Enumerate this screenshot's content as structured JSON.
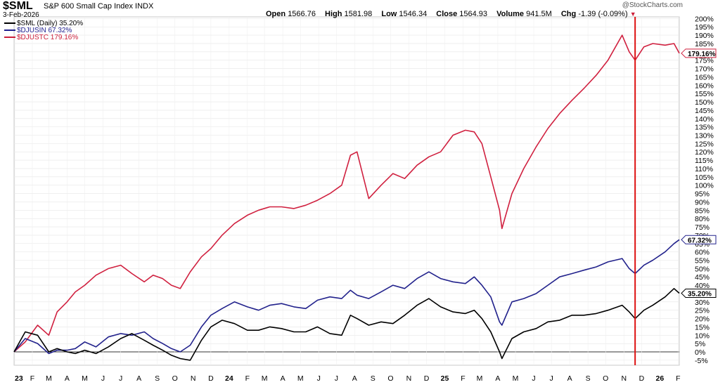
{
  "header": {
    "symbol": "$SML",
    "index_name": "S&P 600 Small Cap Index  INDX",
    "date": "3-Feb-2026",
    "brand": "@StockCharts.com",
    "open_label": "Open",
    "open_value": "1566.76",
    "high_label": "High",
    "high_value": "1581.98",
    "low_label": "Low",
    "low_value": "1546.34",
    "close_label": "Close",
    "close_value": "1564.93",
    "volume_label": "Volume",
    "volume_value": "941.5M",
    "chg_label": "Chg",
    "chg_value": "-1.39 (-0.09%)"
  },
  "legend": [
    {
      "label": "$SML (Daily) 35.20%",
      "color": "#000000"
    },
    {
      "label": "$DJUSIN 67.32%",
      "color": "#1f1f8f"
    },
    {
      "label": "$DJUSTC 179.16%",
      "color": "#cc1f3a"
    }
  ],
  "colors": {
    "sml": "#000000",
    "djusin": "#22228c",
    "djustc": "#d0203f",
    "marker": "#dd1111",
    "zero_line": "#333333"
  },
  "chart_data": {
    "type": "line",
    "ylim": [
      -8,
      201
    ],
    "y_ticks": [
      "-5%",
      "0%",
      "5%",
      "10%",
      "15%",
      "20%",
      "25%",
      "30%",
      "35%",
      "40%",
      "45%",
      "50%",
      "55%",
      "60%",
      "65%",
      "70%",
      "75%",
      "80%",
      "85%",
      "90%",
      "95%",
      "100%",
      "105%",
      "110%",
      "115%",
      "120%",
      "125%",
      "130%",
      "135%",
      "140%",
      "145%",
      "150%",
      "155%",
      "160%",
      "165%",
      "170%",
      "175%",
      "180%",
      "185%",
      "190%",
      "195%",
      "200%"
    ],
    "x_ticks": [
      "23",
      "F",
      "M",
      "A",
      "M",
      "J",
      "J",
      "A",
      "S",
      "O",
      "N",
      "D",
      "24",
      "F",
      "M",
      "A",
      "M",
      "J",
      "J",
      "A",
      "S",
      "O",
      "N",
      "D",
      "25",
      "F",
      "M",
      "A",
      "M",
      "J",
      "J",
      "A",
      "S",
      "O",
      "N",
      "D",
      "26",
      "F"
    ],
    "x_range": [
      "2023-01-01",
      "2026-02-03"
    ],
    "vertical_marker_date": "2025-11-20",
    "series": [
      {
        "name": "$DJUSTC",
        "last_label": "179.16%",
        "x": [
          "2023-01-01",
          "2023-01-20",
          "2023-02-10",
          "2023-03-01",
          "2023-03-15",
          "2023-04-01",
          "2023-04-15",
          "2023-05-01",
          "2023-05-20",
          "2023-06-10",
          "2023-07-01",
          "2023-07-20",
          "2023-08-10",
          "2023-08-25",
          "2023-09-10",
          "2023-09-25",
          "2023-10-10",
          "2023-10-27",
          "2023-11-15",
          "2023-12-01",
          "2023-12-20",
          "2024-01-10",
          "2024-02-01",
          "2024-02-20",
          "2024-03-10",
          "2024-03-30",
          "2024-04-20",
          "2024-05-10",
          "2024-05-30",
          "2024-06-20",
          "2024-07-10",
          "2024-07-25",
          "2024-08-05",
          "2024-08-25",
          "2024-09-15",
          "2024-10-05",
          "2024-10-25",
          "2024-11-15",
          "2024-12-05",
          "2024-12-25",
          "2025-01-15",
          "2025-02-05",
          "2025-02-20",
          "2025-03-05",
          "2025-03-20",
          "2025-04-04",
          "2025-04-08",
          "2025-04-25",
          "2025-05-15",
          "2025-06-05",
          "2025-06-25",
          "2025-07-15",
          "2025-08-05",
          "2025-08-25",
          "2025-09-15",
          "2025-10-05",
          "2025-10-29",
          "2025-11-10",
          "2025-11-20",
          "2025-12-05",
          "2025-12-20",
          "2026-01-10",
          "2026-01-25",
          "2026-02-03"
        ],
        "y": [
          0,
          6,
          16,
          10,
          24,
          30,
          36,
          40,
          46,
          50,
          52,
          47,
          42,
          46,
          44,
          40,
          38,
          48,
          57,
          62,
          70,
          77,
          82,
          85,
          87,
          87,
          86,
          88,
          91,
          95,
          100,
          118,
          120,
          92,
          100,
          107,
          104,
          112,
          117,
          120,
          130,
          133,
          132,
          125,
          105,
          85,
          74,
          95,
          110,
          123,
          134,
          143,
          151,
          158,
          166,
          175,
          190,
          180,
          175,
          183,
          185,
          184,
          185,
          179.16
        ]
      },
      {
        "name": "$DJUSIN",
        "last_label": "67.32%",
        "x": [
          "2023-01-01",
          "2023-01-20",
          "2023-02-10",
          "2023-03-01",
          "2023-03-15",
          "2023-04-01",
          "2023-04-15",
          "2023-05-01",
          "2023-05-20",
          "2023-06-10",
          "2023-07-01",
          "2023-07-20",
          "2023-08-10",
          "2023-08-25",
          "2023-09-10",
          "2023-09-25",
          "2023-10-10",
          "2023-10-27",
          "2023-11-15",
          "2023-12-01",
          "2023-12-20",
          "2024-01-10",
          "2024-02-01",
          "2024-02-20",
          "2024-03-10",
          "2024-03-30",
          "2024-04-20",
          "2024-05-10",
          "2024-05-30",
          "2024-06-20",
          "2024-07-10",
          "2024-07-25",
          "2024-08-05",
          "2024-08-25",
          "2024-09-15",
          "2024-10-05",
          "2024-10-25",
          "2024-11-15",
          "2024-12-05",
          "2024-12-25",
          "2025-01-15",
          "2025-02-05",
          "2025-02-20",
          "2025-03-05",
          "2025-03-20",
          "2025-04-04",
          "2025-04-08",
          "2025-04-25",
          "2025-05-15",
          "2025-06-05",
          "2025-06-25",
          "2025-07-15",
          "2025-08-05",
          "2025-08-25",
          "2025-09-15",
          "2025-10-05",
          "2025-10-29",
          "2025-11-10",
          "2025-11-20",
          "2025-12-05",
          "2025-12-20",
          "2026-01-10",
          "2026-01-25",
          "2026-02-03"
        ],
        "y": [
          0,
          8,
          5,
          -1,
          1,
          1,
          2,
          6,
          3,
          9,
          11,
          10,
          12,
          8,
          5,
          2,
          0,
          4,
          15,
          22,
          26,
          30,
          27,
          25,
          28,
          29,
          27,
          26,
          31,
          33,
          32,
          37,
          34,
          32,
          36,
          40,
          38,
          44,
          48,
          44,
          42,
          41,
          45,
          40,
          33,
          18,
          16,
          30,
          32,
          35,
          40,
          45,
          47,
          49,
          51,
          54,
          56,
          50,
          47,
          52,
          55,
          60,
          65,
          67.32
        ]
      },
      {
        "name": "$SML (Daily)",
        "last_label": "35.20%",
        "x": [
          "2023-01-01",
          "2023-01-20",
          "2023-02-10",
          "2023-03-01",
          "2023-03-15",
          "2023-04-01",
          "2023-04-15",
          "2023-05-01",
          "2023-05-20",
          "2023-06-10",
          "2023-07-01",
          "2023-07-20",
          "2023-08-10",
          "2023-08-25",
          "2023-09-10",
          "2023-09-25",
          "2023-10-10",
          "2023-10-27",
          "2023-11-15",
          "2023-12-01",
          "2023-12-20",
          "2024-01-10",
          "2024-02-01",
          "2024-02-20",
          "2024-03-10",
          "2024-03-30",
          "2024-04-20",
          "2024-05-10",
          "2024-05-30",
          "2024-06-20",
          "2024-07-10",
          "2024-07-25",
          "2024-08-05",
          "2024-08-25",
          "2024-09-15",
          "2024-10-05",
          "2024-10-25",
          "2024-11-15",
          "2024-12-05",
          "2024-12-25",
          "2025-01-15",
          "2025-02-05",
          "2025-02-20",
          "2025-03-05",
          "2025-03-20",
          "2025-04-04",
          "2025-04-08",
          "2025-04-25",
          "2025-05-15",
          "2025-06-05",
          "2025-06-25",
          "2025-07-15",
          "2025-08-05",
          "2025-08-25",
          "2025-09-15",
          "2025-10-05",
          "2025-10-29",
          "2025-11-10",
          "2025-11-20",
          "2025-12-05",
          "2025-12-20",
          "2026-01-10",
          "2026-01-25",
          "2026-02-03"
        ],
        "y": [
          0,
          12,
          10,
          0,
          2,
          0,
          -1,
          1,
          -1,
          3,
          8,
          11,
          7,
          4,
          1,
          -2,
          -4,
          -5,
          7,
          15,
          19,
          17,
          13,
          13,
          15,
          14,
          12,
          12,
          15,
          11,
          10,
          22,
          20,
          16,
          18,
          17,
          22,
          28,
          32,
          27,
          24,
          23,
          25,
          20,
          12,
          0,
          -4,
          8,
          12,
          14,
          18,
          19,
          22,
          22,
          23,
          25,
          28,
          24,
          20,
          25,
          28,
          33,
          38,
          35.2
        ]
      }
    ]
  }
}
